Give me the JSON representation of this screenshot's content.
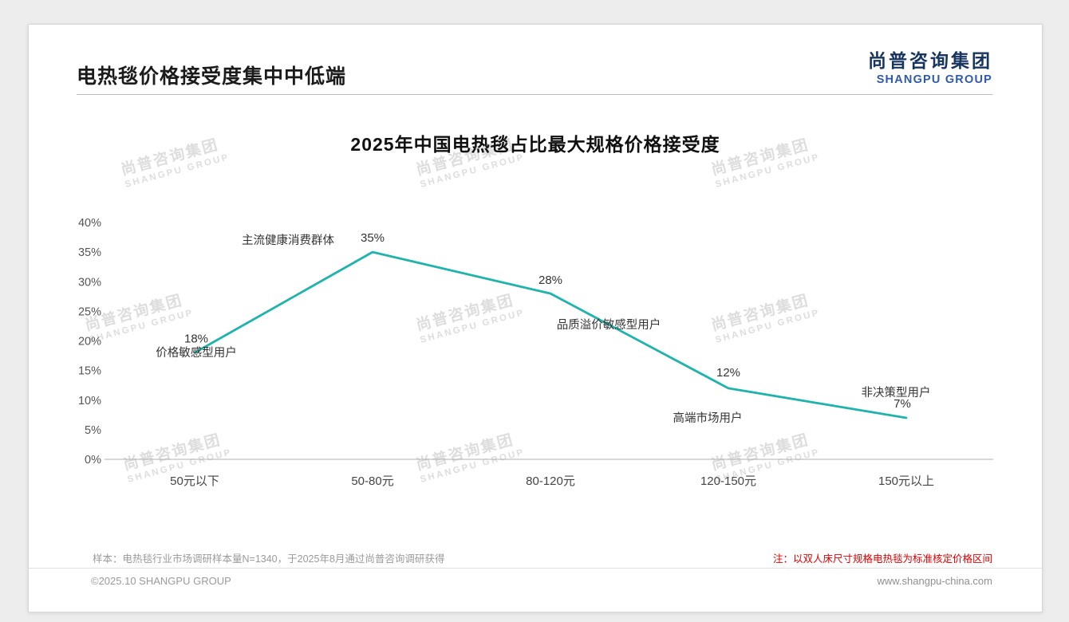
{
  "header": {
    "title": "电热毯价格接受度集中中低端",
    "logo_cn": "尚普咨询集团",
    "logo_en": "SHANGPU GROUP"
  },
  "chart_data": {
    "type": "line",
    "title": "2025年中国电热毯占比最大规格价格接受度",
    "categories": [
      "50元以下",
      "50-80元",
      "80-120元",
      "120-150元",
      "150元以上"
    ],
    "values": [
      18,
      35,
      28,
      12,
      7
    ],
    "value_labels": [
      "18%",
      "35%",
      "28%",
      "12%",
      "7%"
    ],
    "annotations": [
      "价格敏感型用户",
      "主流健康消费群体",
      "品质溢价敏感型用户",
      "高端市场用户",
      "非决策型用户"
    ],
    "ylim": [
      0,
      40
    ],
    "ytick_step": 5,
    "yticks": [
      "40%",
      "35%",
      "30%",
      "25%",
      "20%",
      "15%",
      "10%",
      "5%",
      "0%"
    ],
    "xlabel": "",
    "ylabel": "",
    "grid": false,
    "legend": "none",
    "line_color": "#1eb3ab",
    "axis_color": "#b0b0b0",
    "label_color": "#333333"
  },
  "footnotes": {
    "sample": "样本：电热毯行业市场调研样本量N=1340，于2025年8月通过尚普咨询调研获得",
    "note": "注：以双人床尺寸规格电热毯为标准核定价格区间"
  },
  "footer": {
    "copyright": "©2025.10 SHANGPU GROUP",
    "website": "www.shangpu-china.com"
  },
  "watermark": {
    "line1": "尚普咨询集团",
    "line2": "SHANGPU GROUP"
  }
}
